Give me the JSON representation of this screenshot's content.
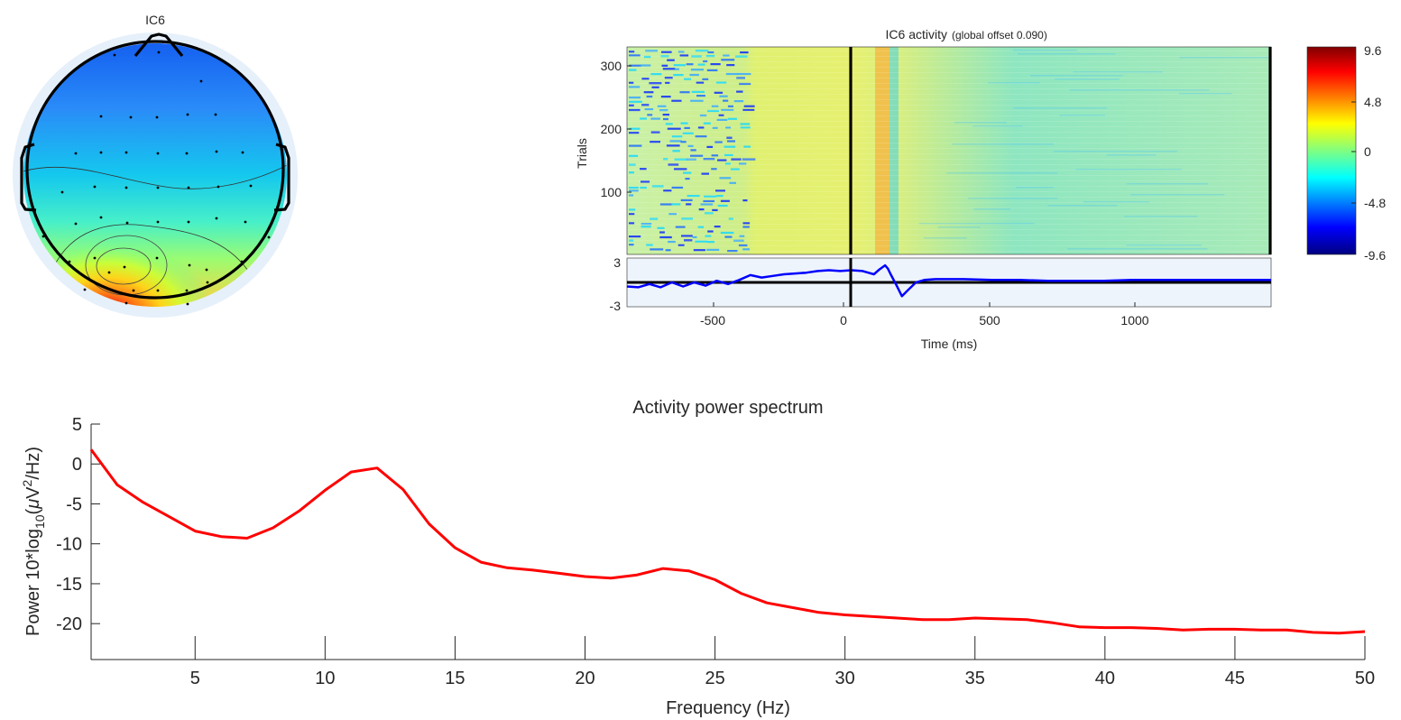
{
  "topoplot": {
    "title": "IC6",
    "colormap": "jet"
  },
  "erpimage": {
    "title_main": "IC6 activity",
    "title_sub": "(global offset 0.090)",
    "ylabel": "Trials",
    "xlabel": "Time (ms)",
    "trial_ticks": [
      "100",
      "200",
      "300"
    ],
    "erp_ticks": [
      "3",
      "-3"
    ],
    "time_ticks": [
      "-500",
      "0",
      "500",
      "1000"
    ],
    "colorbar_ticks": [
      "9.6",
      "4.8",
      "0",
      "-4.8",
      "-9.6"
    ],
    "xlim": [
      -800,
      1496
    ],
    "trial_ylim": [
      1,
      330
    ],
    "erp_ylim": [
      -3,
      3
    ],
    "clim": [
      -9.6,
      9.6
    ],
    "stimulus_line_ms": 30
  },
  "chart_data": [
    {
      "type": "line",
      "title": "Activity power spectrum",
      "xlabel": "Frequency (Hz)",
      "ylabel_parts": [
        "Power 10*log",
        "10",
        "(",
        "μ",
        "V",
        "2",
        "/Hz)"
      ],
      "xlim": [
        1,
        50
      ],
      "ylim": [
        -24.5,
        5
      ],
      "xticks": [
        "5",
        "10",
        "15",
        "20",
        "25",
        "30",
        "35",
        "40",
        "45",
        "50"
      ],
      "yticks": [
        "5",
        "0",
        "-5",
        "-10",
        "-15",
        "-20"
      ],
      "line_color": "#ff0000",
      "series": [
        {
          "x": [
            1,
            2,
            3,
            4,
            5,
            6,
            7,
            8,
            9,
            10,
            11,
            12,
            13,
            14,
            15,
            16,
            17,
            18,
            19,
            20,
            21,
            22,
            23,
            24,
            25,
            26,
            27,
            28,
            29,
            30,
            31,
            32,
            33,
            34,
            35,
            36,
            37,
            38,
            39,
            40,
            41,
            42,
            43,
            44,
            45,
            46,
            47,
            48,
            49,
            50
          ],
          "values": [
            1.8,
            -2.6,
            -4.8,
            -6.6,
            -8.4,
            -9.1,
            -9.3,
            -8.0,
            -5.9,
            -3.3,
            -1.0,
            -0.5,
            -3.2,
            -7.5,
            -10.5,
            -12.3,
            -13.0,
            -13.3,
            -13.7,
            -14.1,
            -14.3,
            -13.9,
            -13.1,
            -13.4,
            -14.5,
            -16.2,
            -17.4,
            -18.0,
            -18.6,
            -18.9,
            -19.1,
            -19.3,
            -19.5,
            -19.5,
            -19.3,
            -19.4,
            -19.5,
            -19.9,
            -20.4,
            -20.5,
            -20.5,
            -20.6,
            -20.8,
            -20.7,
            -20.7,
            -20.8,
            -20.8,
            -21.1,
            -21.2,
            -21.0
          ]
        }
      ]
    },
    {
      "type": "line",
      "title": "",
      "xlim": [
        -800,
        1496
      ],
      "ylim": [
        -3,
        3
      ],
      "line_color": "#0000ff",
      "series": [
        {
          "x": [
            -800,
            -760,
            -720,
            -680,
            -640,
            -600,
            -560,
            -520,
            -480,
            -440,
            -400,
            -360,
            -320,
            -280,
            -240,
            -200,
            -160,
            -120,
            -80,
            -40,
            0,
            40,
            60,
            80,
            100,
            120,
            130,
            140,
            160,
            180,
            200,
            230,
            260,
            300,
            400,
            500,
            600,
            700,
            800,
            900,
            1000,
            1100,
            1200,
            1300,
            1400,
            1496
          ],
          "values": [
            -0.5,
            -0.6,
            -0.2,
            -0.6,
            0,
            -0.5,
            0,
            -0.4,
            0.2,
            -0.2,
            0.3,
            0.9,
            0.6,
            0.8,
            1,
            1.1,
            1.2,
            1.4,
            1.5,
            1.4,
            1.5,
            1.4,
            1.2,
            1.0,
            1.6,
            2.1,
            1.7,
            1.0,
            -0.3,
            -1.7,
            -1.0,
            0,
            0.3,
            0.4,
            0.4,
            0.3,
            0.3,
            0.2,
            0.2,
            0.2,
            0.3,
            0.3,
            0.3,
            0.3,
            0.3,
            0.3
          ]
        },
        {
          "name": "",
          "x": [
            -800,
            1496
          ],
          "values": [
            0,
            0
          ]
        }
      ]
    }
  ]
}
